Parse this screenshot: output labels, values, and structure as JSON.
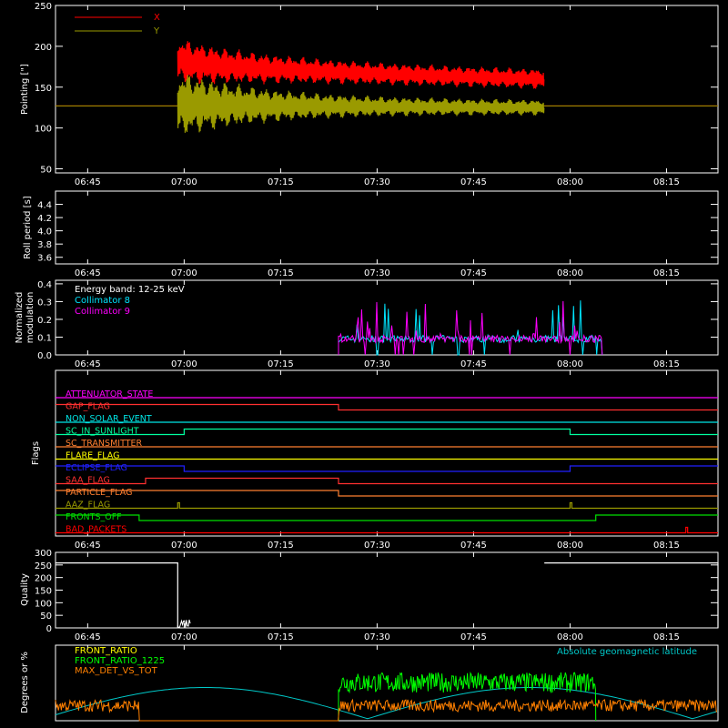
{
  "chart_data": [
    {
      "type": "line",
      "id": "pointing",
      "ylabel": "Pointing [\"]",
      "ylim": [
        45,
        250
      ],
      "yticks": [
        50,
        100,
        150,
        200,
        250
      ],
      "xlim": [
        "06:40",
        "08:23"
      ],
      "xticks": [
        "06:45",
        "07:00",
        "07:15",
        "07:30",
        "07:45",
        "08:00",
        "08:15"
      ],
      "legend": {
        "placement": "top-left",
        "entries": [
          {
            "name": "X",
            "color": "#ff0000"
          },
          {
            "name": "Y",
            "color": "#9a9a00"
          }
        ]
      },
      "series": [
        {
          "name": "X",
          "color": "#ff0000",
          "baseline": 127,
          "start": "06:59",
          "end": "07:56",
          "center_start": 185,
          "center_end": 160,
          "amp_start": 28,
          "amp_end": 12
        },
        {
          "name": "Y",
          "color": "#9a9a00",
          "baseline": 127,
          "start": "06:59",
          "end": "07:56",
          "center_start": 130,
          "center_end": 125,
          "amp_start": 40,
          "amp_end": 9
        }
      ]
    },
    {
      "type": "line",
      "id": "roll",
      "ylabel": "Roll period [s]",
      "ylim": [
        3.5,
        4.6
      ],
      "yticks": [
        3.6,
        3.8,
        4.0,
        4.2,
        4.4
      ],
      "ytick_labels": [
        "3.6",
        "3.8",
        "4.0",
        "4.2",
        "4.4"
      ],
      "xticks": [
        "06:45",
        "07:00",
        "07:15",
        "07:30",
        "07:45",
        "08:00",
        "08:15"
      ],
      "series": []
    },
    {
      "type": "line",
      "id": "modulation",
      "ylabel": [
        "Normalized",
        "modulation"
      ],
      "ylim": [
        0,
        0.42
      ],
      "yticks": [
        0,
        0.1,
        0.2,
        0.3,
        0.4
      ],
      "ytick_labels": [
        "0.0",
        "0.1",
        "0.2",
        "0.3",
        "0.4"
      ],
      "xticks": [
        "06:45",
        "07:00",
        "07:15",
        "07:30",
        "07:45",
        "08:00",
        "08:15"
      ],
      "annotation": "Energy band: 12-25 keV",
      "series": [
        {
          "name": "Collimator 8",
          "color": "#00e5ff",
          "start": "07:24",
          "end": "08:05",
          "level": 0.09
        },
        {
          "name": "Collimator 9",
          "color": "#ff00ff",
          "start": "07:24",
          "end": "08:05",
          "level": 0.09
        }
      ]
    },
    {
      "type": "line",
      "id": "flags",
      "ylabel": "Flags",
      "xticks": [
        "06:45",
        "07:00",
        "07:15",
        "07:30",
        "07:45",
        "08:00",
        "08:15"
      ],
      "flags": [
        {
          "name": "ATTENUATOR_STATE",
          "color": "#ff00ff",
          "steps": []
        },
        {
          "name": "GAP_FLAG",
          "color": "#ff3030",
          "high_from": "06:40",
          "high_to": "07:24"
        },
        {
          "name": "NON_SOLAR_EVENT",
          "color": "#00e5e5",
          "high_from": null,
          "high_to": null
        },
        {
          "name": "SC_IN_SUNLIGHT",
          "color": "#00ffa0",
          "high_from": "07:00",
          "high_to": "08:00",
          "low_color": "#e0e000"
        },
        {
          "name": "SC_TRANSMITTER",
          "color": "#ff7f30",
          "high_from": null,
          "high_to": null
        },
        {
          "name": "FLARE_FLAG",
          "color": "#ffff00",
          "high_from": null,
          "high_to": null
        },
        {
          "name": "ECLIPSE_FLAG",
          "color": "#2020ff",
          "high_from": "06:40",
          "high_to": "07:00",
          "high_from2": "08:00",
          "high_to2": "08:23"
        },
        {
          "name": "SAA_FLAG",
          "color": "#ff3030",
          "high_from": "06:54",
          "high_to": "07:24"
        },
        {
          "name": "PARTICLE_FLAG",
          "color": "#ff7f30",
          "high_from": "06:40",
          "high_to": "07:24"
        },
        {
          "name": "AAZ_FLAG",
          "color": "#9a9a00",
          "spikes": [
            "06:59",
            "08:00"
          ]
        },
        {
          "name": "FRONTS_OFF",
          "color": "#00e000",
          "high_from": "06:40",
          "high_to": "06:53",
          "high_from2": "08:04",
          "high_to2": "08:23"
        },
        {
          "name": "BAD_PACKETS",
          "color": "#ff0000",
          "spikes": [
            "08:18"
          ]
        }
      ]
    },
    {
      "type": "area",
      "id": "quality",
      "ylabel": "Quality",
      "ylim": [
        0,
        300
      ],
      "yticks": [
        0,
        50,
        100,
        150,
        200,
        250,
        300
      ],
      "xticks": [
        "06:45",
        "07:00",
        "07:15",
        "07:30",
        "07:45",
        "08:00",
        "08:15"
      ],
      "series": [
        {
          "name": "Quality",
          "color": "#ffffff",
          "segments": [
            {
              "from": "06:40",
              "to": "06:59",
              "value": 258
            },
            {
              "from": "07:56",
              "to": "08:23",
              "value": 258
            }
          ]
        }
      ]
    },
    {
      "type": "line",
      "id": "ratios",
      "ylabel": "Degrees or %",
      "ylim": [
        0,
        75
      ],
      "xticks": [
        "06:45",
        "07:00",
        "07:15",
        "07:30",
        "07:45",
        "08:00",
        "08:15"
      ],
      "legend": {
        "placement": "top-left",
        "entries": [
          {
            "name": "FRONT_RATIO",
            "color": "#ffff00"
          },
          {
            "name": "FRONT_RATIO_1225",
            "color": "#00ff00"
          },
          {
            "name": "MAX_DET_VS_TOT",
            "color": "#ff8000"
          }
        ]
      },
      "annotation": "Absolute geomagnetic latitude",
      "series": [
        {
          "name": "FRONT_RATIO_1225",
          "color": "#00ff00",
          "start": "07:24",
          "end": "08:04",
          "level": 38,
          "noise": 10
        },
        {
          "name": "MAX_DET_VS_TOT",
          "color": "#ff8000",
          "level": 15,
          "noise": 6
        },
        {
          "name": "Absolute geomagnetic latitude",
          "color": "#00c8c8",
          "min": 2,
          "max": 33
        }
      ]
    }
  ]
}
